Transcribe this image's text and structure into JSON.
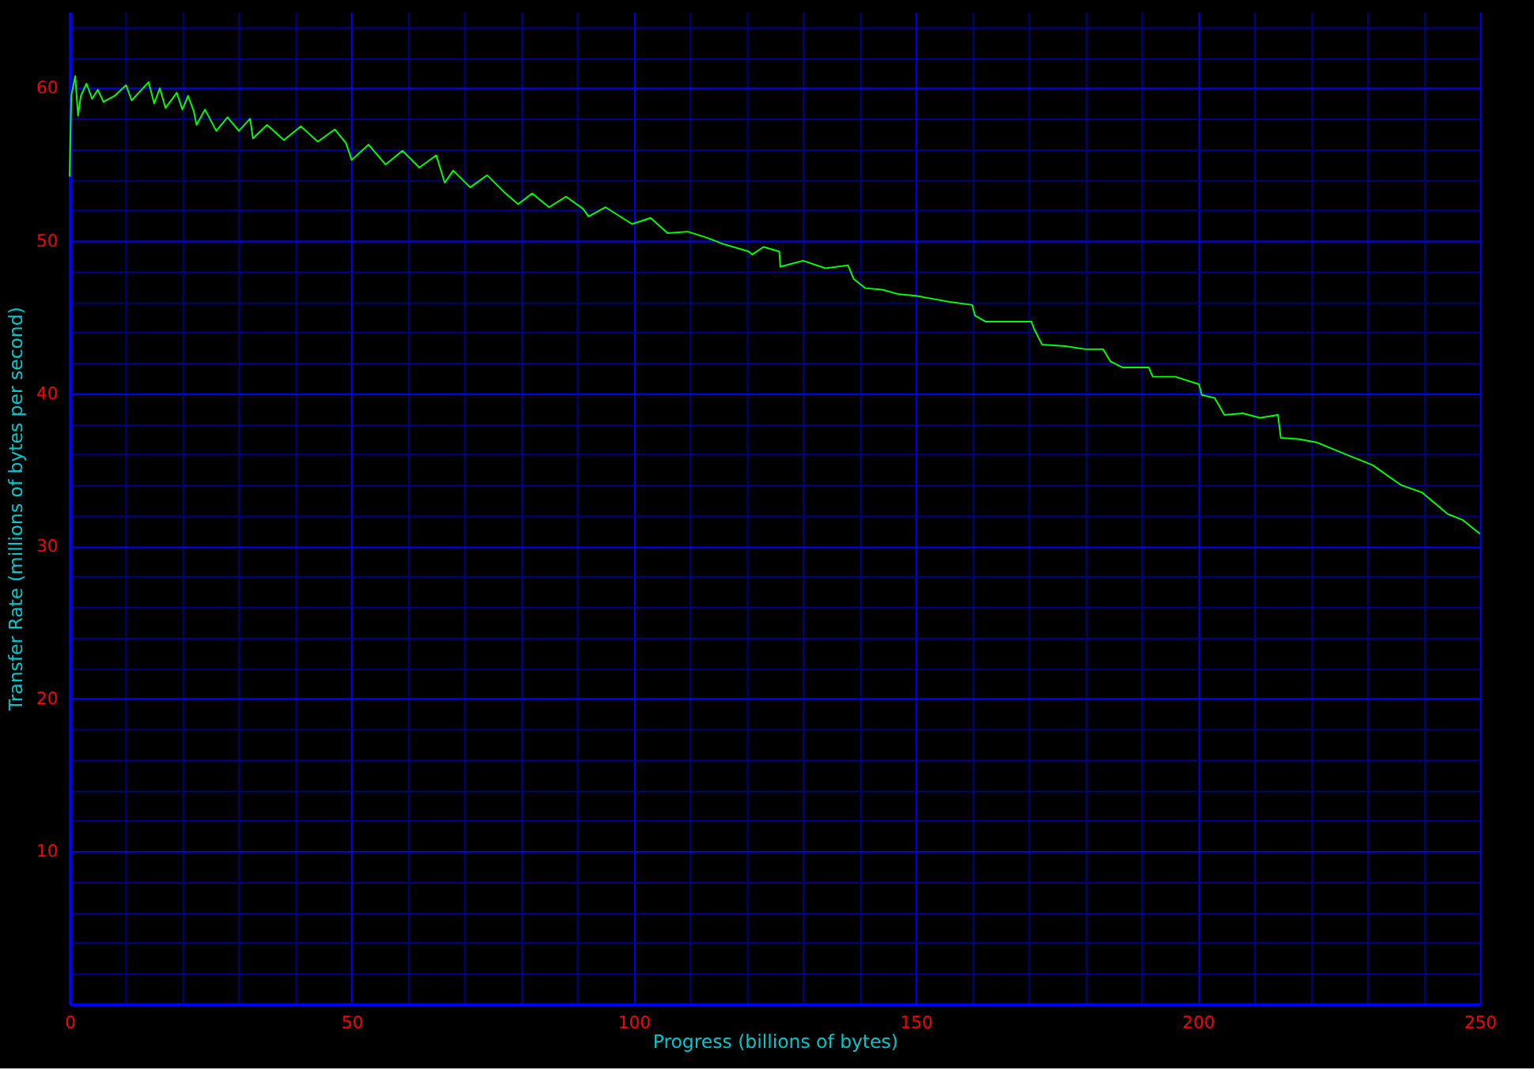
{
  "chart_data": {
    "type": "line",
    "xlabel": "Progress (billions of bytes)",
    "ylabel": "Transfer Rate (millions of bytes per second)",
    "xlim": [
      0,
      250
    ],
    "ylim": [
      0,
      65
    ],
    "xticks": [
      0,
      {
        "value": 10,
        "label": null
      },
      {
        "value": 20,
        "label": null
      },
      {
        "value": 30,
        "label": null
      },
      {
        "value": 40,
        "label": null
      },
      50,
      {
        "value": 60,
        "label": null
      },
      {
        "value": 70,
        "label": null
      },
      {
        "value": 80,
        "label": null
      },
      {
        "value": 90,
        "label": null
      },
      100,
      {
        "value": 110,
        "label": null
      },
      {
        "value": 120,
        "label": null
      },
      {
        "value": 130,
        "label": null
      },
      {
        "value": 140,
        "label": null
      },
      150,
      {
        "value": 160,
        "label": null
      },
      {
        "value": 170,
        "label": null
      },
      {
        "value": 180,
        "label": null
      },
      {
        "value": 190,
        "label": null
      },
      200,
      {
        "value": 210,
        "label": null
      },
      {
        "value": 220,
        "label": null
      },
      {
        "value": 230,
        "label": null
      },
      {
        "value": 240,
        "label": null
      },
      250
    ],
    "yticks": [
      {
        "value": 0,
        "label": null
      },
      {
        "value": 2,
        "label": null
      },
      {
        "value": 4,
        "label": null
      },
      {
        "value": 6,
        "label": null
      },
      {
        "value": 8,
        "label": null
      },
      10,
      {
        "value": 12,
        "label": null
      },
      {
        "value": 14,
        "label": null
      },
      {
        "value": 16,
        "label": null
      },
      {
        "value": 18,
        "label": null
      },
      20,
      {
        "value": 22,
        "label": null
      },
      {
        "value": 24,
        "label": null
      },
      {
        "value": 26,
        "label": null
      },
      {
        "value": 28,
        "label": null
      },
      30,
      {
        "value": 32,
        "label": null
      },
      {
        "value": 34,
        "label": null
      },
      {
        "value": 36,
        "label": null
      },
      {
        "value": 38,
        "label": null
      },
      40,
      {
        "value": 42,
        "label": null
      },
      {
        "value": 44,
        "label": null
      },
      {
        "value": 46,
        "label": null
      },
      {
        "value": 48,
        "label": null
      },
      50,
      {
        "value": 52,
        "label": null
      },
      {
        "value": 54,
        "label": null
      },
      {
        "value": 56,
        "label": null
      },
      {
        "value": 58,
        "label": null
      },
      60,
      {
        "value": 62,
        "label": null
      },
      {
        "value": 64,
        "label": null
      }
    ],
    "grid": true,
    "marker": "none",
    "line_style": "solid",
    "series": [
      {
        "color": "#00ff00",
        "x": [
          0,
          0.3,
          1,
          1.5,
          2,
          3,
          4,
          5,
          6,
          8,
          10,
          11,
          12,
          14,
          15,
          16,
          17,
          19,
          20,
          21,
          22,
          22.5,
          24,
          26,
          28,
          30,
          32,
          32.5,
          35,
          38,
          41,
          44,
          47,
          49,
          50,
          53,
          56,
          59,
          62,
          65,
          66.5,
          68,
          71,
          74,
          77,
          79.5,
          82,
          85,
          88,
          91,
          92,
          95,
          99.7,
          103,
          106,
          109.6,
          113,
          115.8,
          120.4,
          121,
          123,
          125.8,
          126,
          130,
          134,
          138,
          139,
          141,
          144,
          147,
          150,
          153,
          156,
          160,
          160.5,
          162.4,
          166,
          170.5,
          171,
          172.4,
          176.5,
          180,
          183.2,
          184.5,
          186.7,
          191.3,
          192,
          196,
          200.2,
          200.7,
          203,
          204.7,
          208,
          211,
          214.2,
          214.7,
          218,
          221,
          226.3,
          231,
          236,
          239.8,
          244.3,
          247,
          250
        ],
        "values": [
          54.2,
          59.5,
          60.8,
          58.2,
          59.5,
          60.3,
          59.3,
          59.9,
          59.1,
          59.5,
          60.2,
          59.2,
          59.6,
          60.4,
          59.0,
          60.0,
          58.7,
          59.7,
          58.6,
          59.5,
          58.5,
          57.6,
          58.6,
          57.2,
          58.1,
          57.2,
          58.0,
          56.7,
          57.6,
          56.6,
          57.5,
          56.5,
          57.3,
          56.4,
          55.3,
          56.3,
          55.0,
          55.9,
          54.8,
          55.6,
          53.8,
          54.6,
          53.5,
          54.3,
          53.2,
          52.4,
          53.1,
          52.2,
          52.9,
          52.1,
          51.6,
          52.2,
          51.1,
          51.5,
          50.5,
          50.6,
          50.2,
          49.8,
          49.3,
          49.1,
          49.6,
          49.3,
          48.3,
          48.7,
          48.2,
          48.4,
          47.5,
          46.9,
          46.8,
          46.5,
          46.4,
          46.2,
          46.0,
          45.8,
          45.1,
          44.7,
          44.7,
          44.7,
          44.2,
          43.2,
          43.1,
          42.9,
          42.9,
          42.1,
          41.7,
          41.7,
          41.1,
          41.1,
          40.6,
          39.9,
          39.7,
          38.6,
          38.7,
          38.4,
          38.6,
          37.1,
          37.0,
          36.8,
          36.0,
          35.3,
          34.0,
          33.5,
          32.1,
          31.7,
          30.8
        ]
      }
    ]
  }
}
